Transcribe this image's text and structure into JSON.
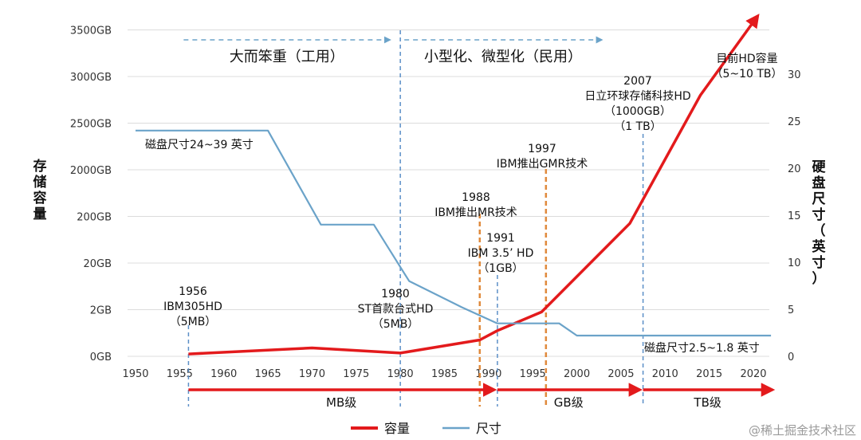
{
  "chart_data": {
    "type": "line",
    "x_ticks": [
      1950,
      1955,
      1960,
      1965,
      1970,
      1975,
      1980,
      1985,
      1990,
      1995,
      2000,
      2005,
      2010,
      2015,
      2020
    ],
    "xlim": [
      1948,
      2023
    ],
    "left_axis": {
      "label": "存储容量",
      "ticks": [
        "0GB",
        "2GB",
        "20GB",
        "200GB",
        "2000GB",
        "2500GB",
        "3000GB",
        "3500GB"
      ],
      "scale": "piecewise: log steps 0GB–2000GB, linear steps 2000GB–3500GB"
    },
    "right_axis": {
      "label": "硬盘尺寸（英寸）",
      "ticks": [
        0,
        5,
        10,
        15,
        20,
        25,
        30
      ],
      "ylim": [
        0,
        30
      ]
    },
    "series": [
      {
        "name": "容量",
        "color": "#e31a1c",
        "axis": "left",
        "note_units": "left-axis tick index (0=0GB,1=2GB,2=20GB,3=200GB,4=2000GB,5=2500GB,6=3000GB,7=3500GB)",
        "points": [
          [
            1956,
            0.05
          ],
          [
            1970,
            0.18
          ],
          [
            1980,
            0.07
          ],
          [
            1989,
            0.35
          ],
          [
            1991,
            0.55
          ],
          [
            1996,
            0.95
          ],
          [
            2006,
            2.85
          ],
          [
            2014,
            5.6
          ],
          [
            2020.5,
            7.3
          ]
        ]
      },
      {
        "name": "尺寸",
        "color": "#6ba3c9",
        "axis": "right",
        "points": [
          [
            1950,
            24
          ],
          [
            1965,
            24
          ],
          [
            1971,
            14
          ],
          [
            1977,
            14
          ],
          [
            1981,
            8
          ],
          [
            1987,
            5.2
          ],
          [
            1991,
            3.5
          ],
          [
            1998,
            3.5
          ],
          [
            2000,
            2.2
          ],
          [
            2022,
            2.2
          ]
        ]
      }
    ],
    "vlines": [
      {
        "x": 1956,
        "color": "#5b8fc7",
        "style": "dashed"
      },
      {
        "x": 1980,
        "color": "#5b8fc7",
        "style": "dashed"
      },
      {
        "x": 1989,
        "color": "#e08a3c",
        "style": "dashed"
      },
      {
        "x": 1991,
        "color": "#5b8fc7",
        "style": "dashed"
      },
      {
        "x": 1996.5,
        "color": "#e08a3c",
        "style": "dashed"
      },
      {
        "x": 2007.5,
        "color": "#5b8fc7",
        "style": "dashed"
      }
    ],
    "eras": [
      {
        "label": "大而笨重（工用）",
        "from": 1955,
        "to": 1979
      },
      {
        "label": "小型化、微型化（民用）",
        "from": 1980,
        "to": 2003
      }
    ],
    "bands": [
      {
        "label": "MB级",
        "from": 1956,
        "to": 1991
      },
      {
        "label": "GB级",
        "from": 1991,
        "to": 2007.5
      },
      {
        "label": "TB级",
        "from": 2007.5,
        "to": 2022.5
      }
    ],
    "annotations": [
      {
        "lines": [
          "1956",
          "IBM305HD",
          "（5MB）"
        ],
        "x": 1956
      },
      {
        "lines": [
          "1980",
          "ST首款台式HD",
          "（5MB）"
        ],
        "x": 1980
      },
      {
        "lines": [
          "1988",
          "IBM推出MR技术"
        ],
        "x": 1988.5
      },
      {
        "lines": [
          "1991",
          "IBM 3.5’ HD",
          "（1GB）"
        ],
        "x": 1991
      },
      {
        "lines": [
          "1997",
          "IBM推出GMR技术"
        ],
        "x": 1996.5
      },
      {
        "lines": [
          "2007",
          "日立环球存储科技HD",
          "（1000GB）",
          "（1 TB）"
        ],
        "x": 2005
      },
      {
        "lines": [
          "目前HD容量",
          "（5~10 TB）"
        ],
        "x": 2015
      },
      {
        "lines": [
          "磁盘尺寸24~39 英寸"
        ],
        "x": 1950
      },
      {
        "lines": [
          "磁盘尺寸2.5~1.8 英寸"
        ],
        "x": 2009
      }
    ],
    "legend": {
      "placement": "bottom-center",
      "items": [
        {
          "label": "容量",
          "color": "#e31a1c"
        },
        {
          "label": "尺寸",
          "color": "#6ba3c9"
        }
      ]
    },
    "grid": "horizontal",
    "watermark": "@稀土掘金技术社区"
  }
}
